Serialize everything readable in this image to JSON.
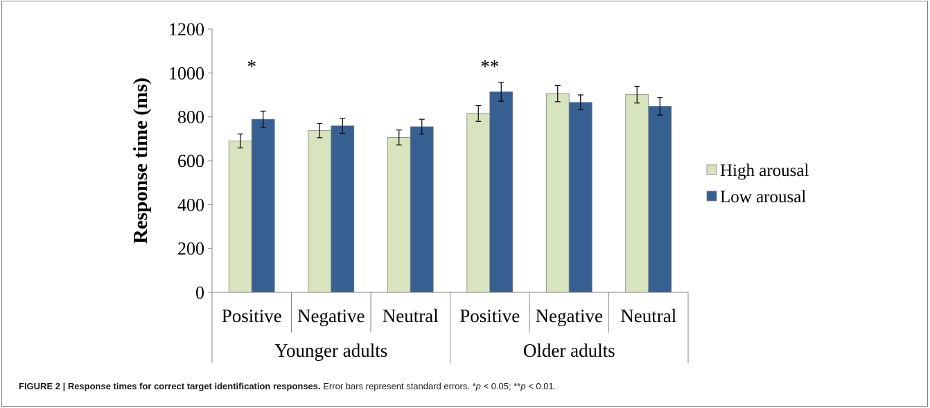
{
  "chart_data": {
    "type": "bar",
    "ylabel": "Response time (ms)",
    "ylim": [
      0,
      1200
    ],
    "yticks": [
      0,
      200,
      400,
      600,
      800,
      1000,
      1200
    ],
    "groups": [
      {
        "label": "Younger adults",
        "categories": [
          "Positive",
          "Negative",
          "Neutral"
        ]
      },
      {
        "label": "Older adults",
        "categories": [
          "Positive",
          "Negative",
          "Neutral"
        ]
      }
    ],
    "categories": [
      "Positive",
      "Negative",
      "Neutral",
      "Positive",
      "Negative",
      "Neutral"
    ],
    "series": [
      {
        "name": "High arousal",
        "color": "#d7e4bd",
        "values": [
          690,
          737,
          706,
          815,
          906,
          901
        ],
        "errors": [
          32,
          32,
          34,
          36,
          37,
          38
        ]
      },
      {
        "name": "Low arousal",
        "color": "#376092",
        "values": [
          789,
          759,
          755,
          914,
          866,
          848
        ],
        "errors": [
          37,
          34,
          34,
          43,
          34,
          40
        ]
      }
    ],
    "annotations": [
      {
        "text": "*",
        "category_index": 0
      },
      {
        "text": "**",
        "category_index": 3
      }
    ],
    "legend_position": "right",
    "grid": false
  },
  "caption": {
    "label": "FIGURE 2 | Response times for correct target identification responses.",
    "text": "Error bars represent standard errors. ",
    "sig1_marker": "*",
    "sig1_var": "p",
    "sig1_rest": " < 0.05; ",
    "sig2_marker": "**",
    "sig2_var": "p",
    "sig2_rest": " < 0.01."
  }
}
